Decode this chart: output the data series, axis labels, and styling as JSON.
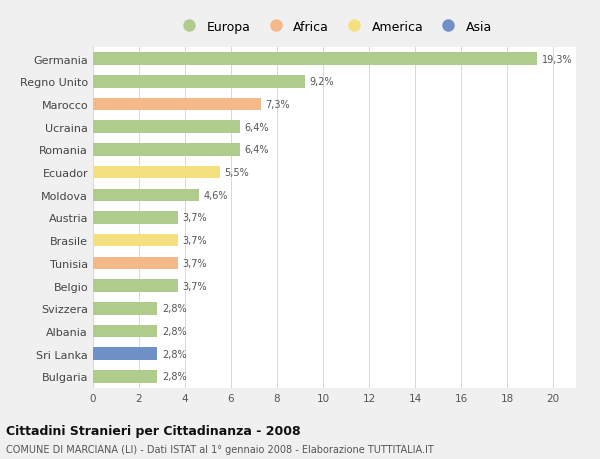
{
  "title": "Cittadini Stranieri per Cittadinanza - 2008",
  "subtitle": "COMUNE DI MARCIANA (LI) - Dati ISTAT al 1° gennaio 2008 - Elaborazione TUTTITALIA.IT",
  "categories": [
    "Germania",
    "Regno Unito",
    "Marocco",
    "Ucraina",
    "Romania",
    "Ecuador",
    "Moldova",
    "Austria",
    "Brasile",
    "Tunisia",
    "Belgio",
    "Svizzera",
    "Albania",
    "Sri Lanka",
    "Bulgaria"
  ],
  "values": [
    19.3,
    9.2,
    7.3,
    6.4,
    6.4,
    5.5,
    4.6,
    3.7,
    3.7,
    3.7,
    3.7,
    2.8,
    2.8,
    2.8,
    2.8
  ],
  "labels": [
    "19,3%",
    "9,2%",
    "7,3%",
    "6,4%",
    "6,4%",
    "5,5%",
    "4,6%",
    "3,7%",
    "3,7%",
    "3,7%",
    "3,7%",
    "2,8%",
    "2,8%",
    "2,8%",
    "2,8%"
  ],
  "colors": [
    "#b0cc8c",
    "#b0cc8c",
    "#f5b888",
    "#b0cc8c",
    "#b0cc8c",
    "#f5e080",
    "#b0cc8c",
    "#b0cc8c",
    "#f5e080",
    "#f5b888",
    "#b0cc8c",
    "#b0cc8c",
    "#b0cc8c",
    "#7090c8",
    "#b0cc8c"
  ],
  "legend_colors": {
    "Europa": "#b0cc8c",
    "Africa": "#f5b888",
    "America": "#f5e080",
    "Asia": "#7090c8"
  },
  "xlim": [
    0,
    21
  ],
  "xticks": [
    0,
    2,
    4,
    6,
    8,
    10,
    12,
    14,
    16,
    18,
    20
  ],
  "background_color": "#f0f0f0",
  "plot_bg_color": "#ffffff"
}
